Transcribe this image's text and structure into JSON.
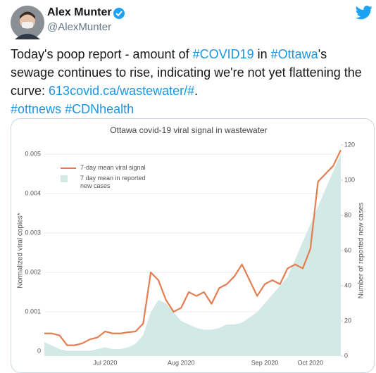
{
  "tweet": {
    "name": "Alex Munter",
    "handle": "@AlexMunter",
    "paragraphs": [
      [
        {
          "text": "Today's poop report - amount of "
        },
        {
          "text": "#COVID19",
          "link": true
        },
        {
          "text": " in "
        },
        {
          "text": "#Ottawa",
          "link": true
        },
        {
          "text": "'s sewage continues to rise, indicating we're not yet flattening the curve: "
        },
        {
          "text": "613covid.ca/wastewater/#",
          "link": true
        },
        {
          "text": "."
        }
      ],
      [
        {
          "text": "#ottnews",
          "link": true
        },
        {
          "text": " "
        },
        {
          "text": "#CDNhealth",
          "link": true
        }
      ]
    ]
  },
  "chart_data": {
    "type": "line",
    "title": "Ottawa covid-19 viral signal in wastewater",
    "y_label": "Normalized viral copies*",
    "y2_label": "Number of reported new cases",
    "categories": [
      null,
      null,
      null,
      null,
      null,
      null,
      null,
      null,
      "Jul 2020",
      null,
      null,
      null,
      null,
      null,
      null,
      null,
      null,
      null,
      "Aug 2020",
      null,
      null,
      null,
      null,
      null,
      null,
      null,
      null,
      null,
      null,
      "Sep 2020",
      null,
      null,
      null,
      null,
      null,
      "Oct 2020",
      null,
      null,
      null,
      null
    ],
    "series": [
      {
        "name": "7-day mean viral signal",
        "type": "line",
        "color": "#e47e52",
        "values": [
          0.00045,
          0.00045,
          0.0004,
          0.00015,
          0.00015,
          0.0002,
          0.0003,
          0.00035,
          0.0005,
          0.00045,
          0.00045,
          0.00048,
          0.0005,
          0.0007,
          0.002,
          0.0018,
          0.0013,
          0.001,
          0.0011,
          0.0015,
          0.0014,
          0.0015,
          0.0012,
          0.0016,
          0.0017,
          0.0019,
          0.0022,
          0.0018,
          0.0014,
          0.0017,
          0.0018,
          0.0017,
          0.0021,
          0.0022,
          0.0021,
          0.0026,
          0.0043,
          0.0045,
          0.0047,
          0.0051
        ]
      },
      {
        "name": "7 day mean in reported new cases",
        "type": "area",
        "axis": "y2",
        "color": "#d3e9e5",
        "values": [
          8,
          6,
          4,
          3,
          3,
          3,
          3,
          4,
          5,
          4,
          4,
          5,
          7,
          12,
          25,
          32,
          30,
          25,
          20,
          18,
          16,
          15,
          15,
          16,
          18,
          18,
          19,
          22,
          25,
          30,
          35,
          40,
          45,
          55,
          65,
          75,
          85,
          95,
          105,
          115
        ]
      }
    ],
    "ylim": [
      -0.000125,
      0.00523
    ],
    "yticks": [
      0,
      0.001,
      0.002,
      0.003,
      0.004,
      0.005
    ],
    "y2lim": [
      0,
      120
    ],
    "y2ticks": [
      0,
      20,
      40,
      60,
      80,
      100,
      120
    ],
    "grid": true
  }
}
